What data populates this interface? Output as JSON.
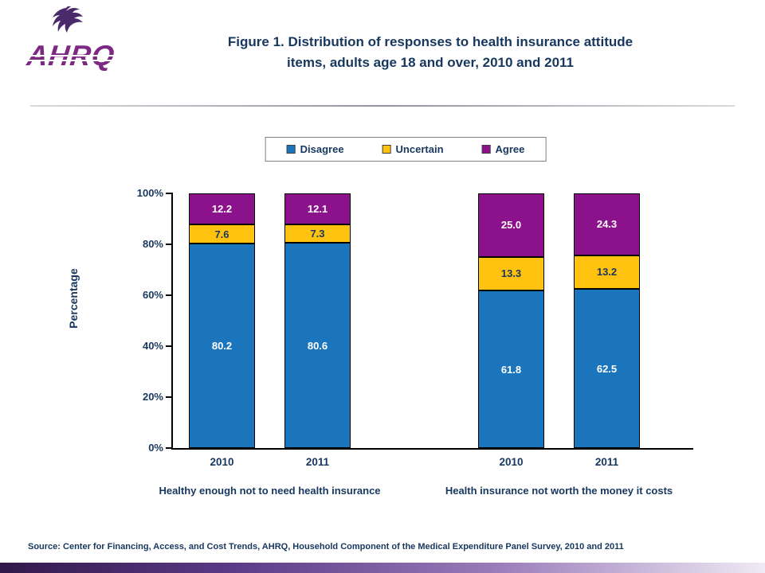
{
  "header": {
    "logo_text": "AHRQ",
    "title_line1": "Figure 1. Distribution of responses to health insurance attitude",
    "title_line2": "items, adults age 18 and over, 2010 and 2011"
  },
  "footer": {
    "source": "Source: Center for Financing, Access, and Cost Trends, AHRQ, Household Component of the Medical Expenditure Panel Survey, 2010 and 2011"
  },
  "chart_data": {
    "type": "bar",
    "stacked": true,
    "title": "Figure 1. Distribution of responses to health insurance attitude items, adults age 18 and over, 2010 and 2011",
    "ylabel": "Percentage",
    "ylim": [
      0,
      100
    ],
    "yticks": [
      0,
      20,
      40,
      60,
      80,
      100
    ],
    "ytick_suffix": "%",
    "grid": false,
    "legend_position": "top",
    "categories": [
      "2010",
      "2011",
      "2010",
      "2011"
    ],
    "groups": [
      {
        "label": "Healthy enough not to need health insurance",
        "bar_indices": [
          0,
          1
        ]
      },
      {
        "label": "Health insurance not worth the money it costs",
        "bar_indices": [
          2,
          3
        ]
      }
    ],
    "series": [
      {
        "name": "Disagree",
        "color": "#1B75BC",
        "label_color": "#FFFFFF",
        "values": [
          80.2,
          80.6,
          61.8,
          62.5
        ]
      },
      {
        "name": "Uncertain",
        "color": "#FFC20E",
        "label_color": "#17375E",
        "values": [
          7.6,
          7.3,
          13.3,
          13.2
        ]
      },
      {
        "name": "Agree",
        "color": "#8C128C",
        "label_color": "#FFFFFF",
        "values": [
          12.2,
          12.1,
          25.0,
          24.3
        ]
      }
    ]
  }
}
